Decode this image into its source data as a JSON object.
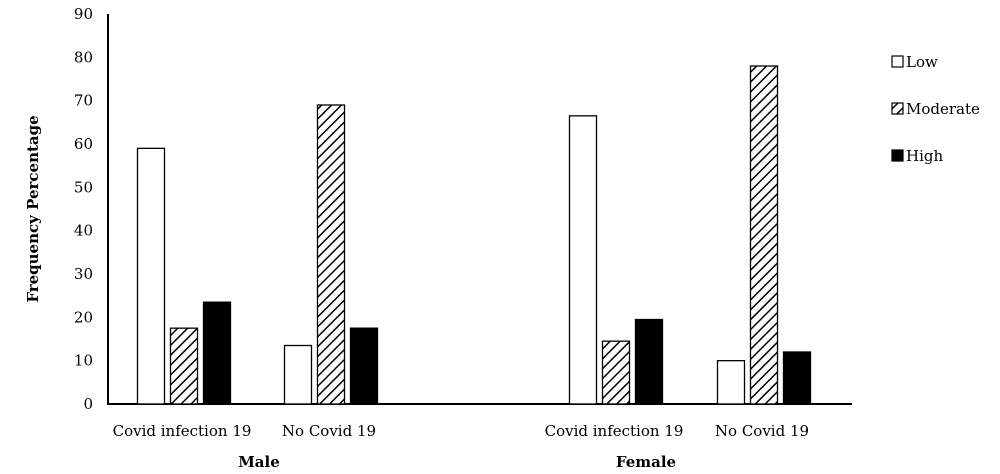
{
  "chart_data": {
    "type": "bar",
    "ylabel": "Frequency Percentage",
    "ylim": [
      0,
      90
    ],
    "yticks": [
      "0",
      "10",
      "20",
      "30",
      "40",
      "50",
      "60",
      "70",
      "80",
      "90"
    ],
    "groups": [
      "Male",
      "Female"
    ],
    "categories": [
      "Covid infection 19",
      "No Covid 19",
      "Covid infection 19",
      "No Covid 19"
    ],
    "series": [
      {
        "name": "Low",
        "pattern": "white",
        "values": [
          59,
          13.5,
          66.5,
          10
        ]
      },
      {
        "name": "Moderate",
        "pattern": "hatch",
        "values": [
          17.5,
          69,
          14.5,
          78
        ]
      },
      {
        "name": "High",
        "pattern": "black",
        "values": [
          23.5,
          17.5,
          19.5,
          12
        ]
      }
    ],
    "legend_position": "right",
    "grid": false
  }
}
